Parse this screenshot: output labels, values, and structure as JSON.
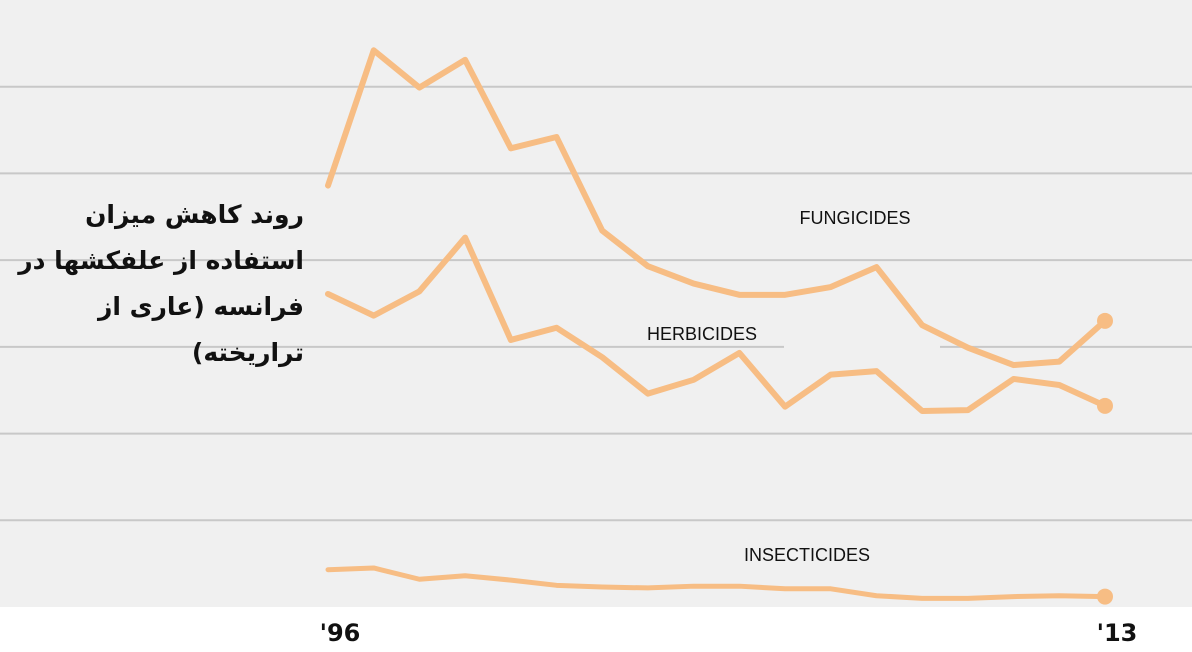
{
  "chart_data": {
    "type": "line",
    "title": "روند کاهش میزان استفاده از علفکشها در فرانسه (عاری از تراریخته)",
    "xlabel": "",
    "ylabel": "",
    "x": [
      1996,
      1997,
      1998,
      1999,
      2000,
      2001,
      2002,
      2003,
      2004,
      2005,
      2006,
      2007,
      2008,
      2009,
      2010,
      2011,
      2012,
      2013
    ],
    "x_tick_labels": [
      "'96",
      "'13"
    ],
    "ylim": [
      0,
      7
    ],
    "grid": true,
    "line_color": "#f7bd84",
    "background": "#f0f0f0",
    "series": [
      {
        "name": "FUNGICIDES",
        "values": [
          4.86,
          6.42,
          5.99,
          6.31,
          5.29,
          5.42,
          4.34,
          3.93,
          3.73,
          3.6,
          3.6,
          3.69,
          3.92,
          3.25,
          2.99,
          2.79,
          2.83,
          3.3
        ]
      },
      {
        "name": "HERBICIDES",
        "values": [
          3.61,
          3.36,
          3.64,
          4.26,
          3.08,
          3.22,
          2.88,
          2.46,
          2.62,
          2.93,
          2.31,
          2.68,
          2.72,
          2.26,
          2.27,
          2.63,
          2.56,
          2.32
        ]
      },
      {
        "name": "INSECTICIDES",
        "values": [
          0.43,
          0.45,
          0.32,
          0.36,
          0.31,
          0.25,
          0.23,
          0.22,
          0.24,
          0.24,
          0.21,
          0.21,
          0.13,
          0.1,
          0.1,
          0.12,
          0.13,
          0.12
        ]
      }
    ]
  }
}
